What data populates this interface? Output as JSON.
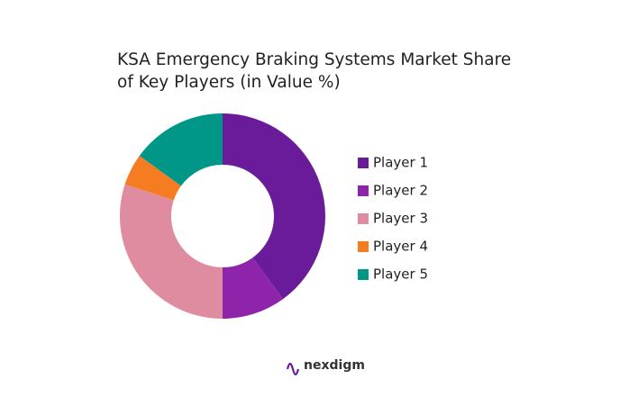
{
  "chart_data": {
    "type": "donut",
    "title": "KSA Emergency Braking Systems Market Share of Key Players (in Value %)",
    "categories": [
      "Player 1",
      "Player 2",
      "Player 3",
      "Player 4",
      "Player 5"
    ],
    "values": [
      40,
      10,
      30,
      5,
      15
    ],
    "colors": [
      "#6a1b9a",
      "#8e24aa",
      "#e08ca0",
      "#f57c20",
      "#009688"
    ],
    "legend": "right"
  },
  "logo_text": "nexdigm"
}
